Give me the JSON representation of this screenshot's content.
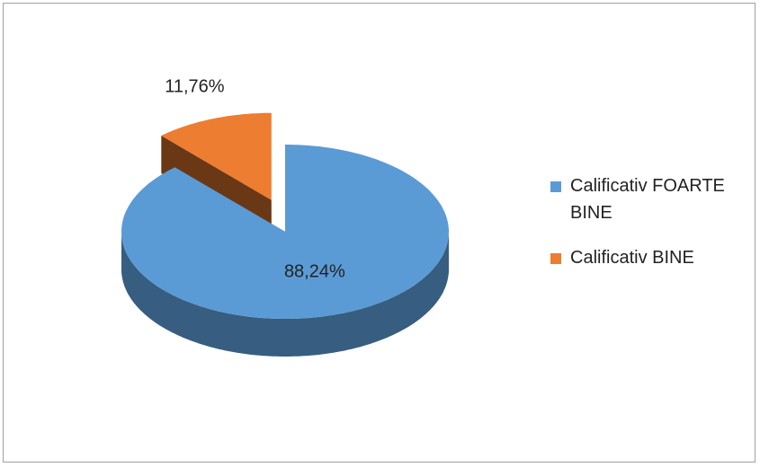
{
  "chart_data": {
    "type": "pie",
    "categories": [
      "Calificativ FOARTE BINE",
      "Calificativ BINE"
    ],
    "values": [
      88.24,
      11.76
    ],
    "value_labels": [
      "88,24%",
      "11,76%"
    ],
    "colors": [
      "#5b9bd5",
      "#ed7d31"
    ],
    "legend": "right"
  }
}
